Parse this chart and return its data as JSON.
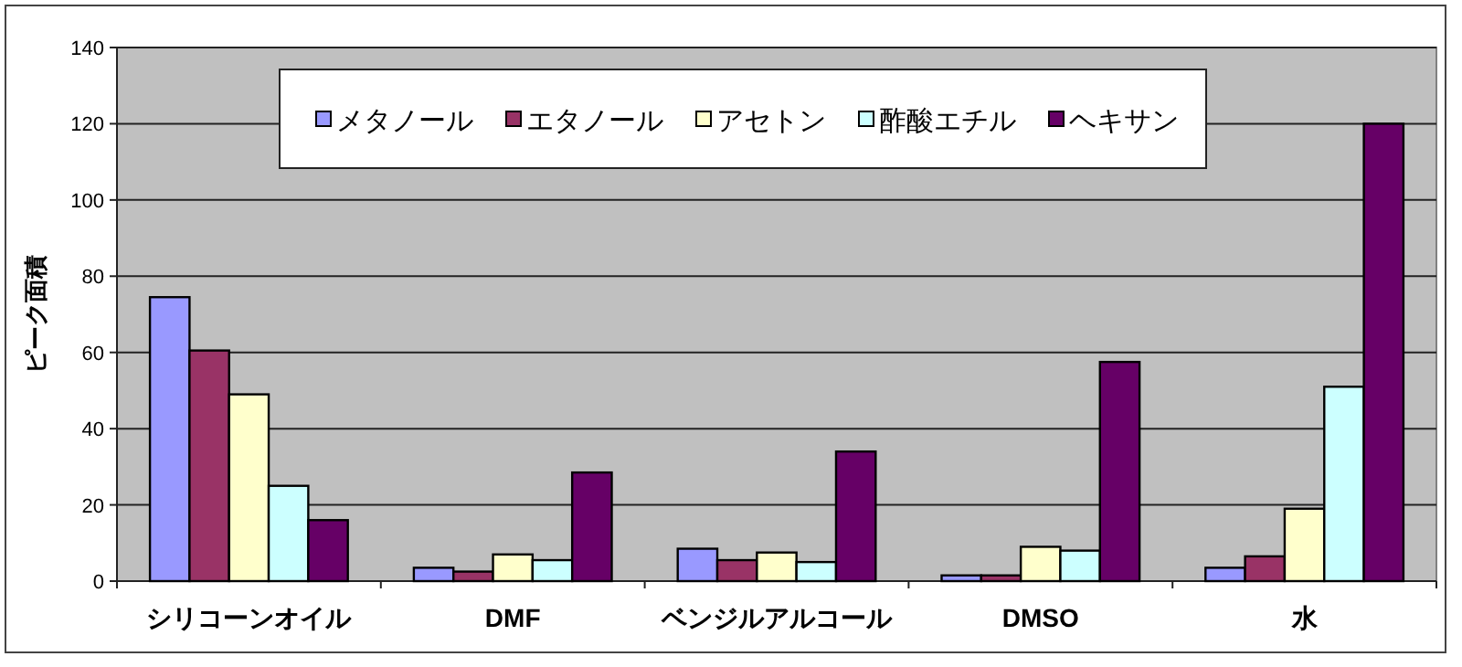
{
  "chart_data": {
    "type": "bar",
    "ylabel": "ピーク面積",
    "categories": [
      "シリコーンオイル",
      "DMF",
      "ベンジルアルコール",
      "DMSO",
      "水"
    ],
    "series": [
      {
        "name": "メタノール",
        "color": "#9999ff",
        "values": [
          74.5,
          3.5,
          8.5,
          1.5,
          3.5
        ]
      },
      {
        "name": "エタノール",
        "color": "#993366",
        "values": [
          60.5,
          2.5,
          5.5,
          1.5,
          6.5
        ]
      },
      {
        "name": "アセトン",
        "color": "#ffffcc",
        "values": [
          49,
          7,
          7.5,
          9,
          19
        ]
      },
      {
        "name": "酢酸エチル",
        "color": "#ccffff",
        "values": [
          25,
          5.5,
          5,
          8,
          51
        ]
      },
      {
        "name": "ヘキサン",
        "color": "#660066",
        "values": [
          16,
          28.5,
          34,
          57.5,
          120
        ]
      }
    ],
    "ylim": [
      0,
      140
    ],
    "yticks": [
      0,
      20,
      40,
      60,
      80,
      100,
      120,
      140
    ],
    "grid": "y",
    "legend": "top"
  }
}
